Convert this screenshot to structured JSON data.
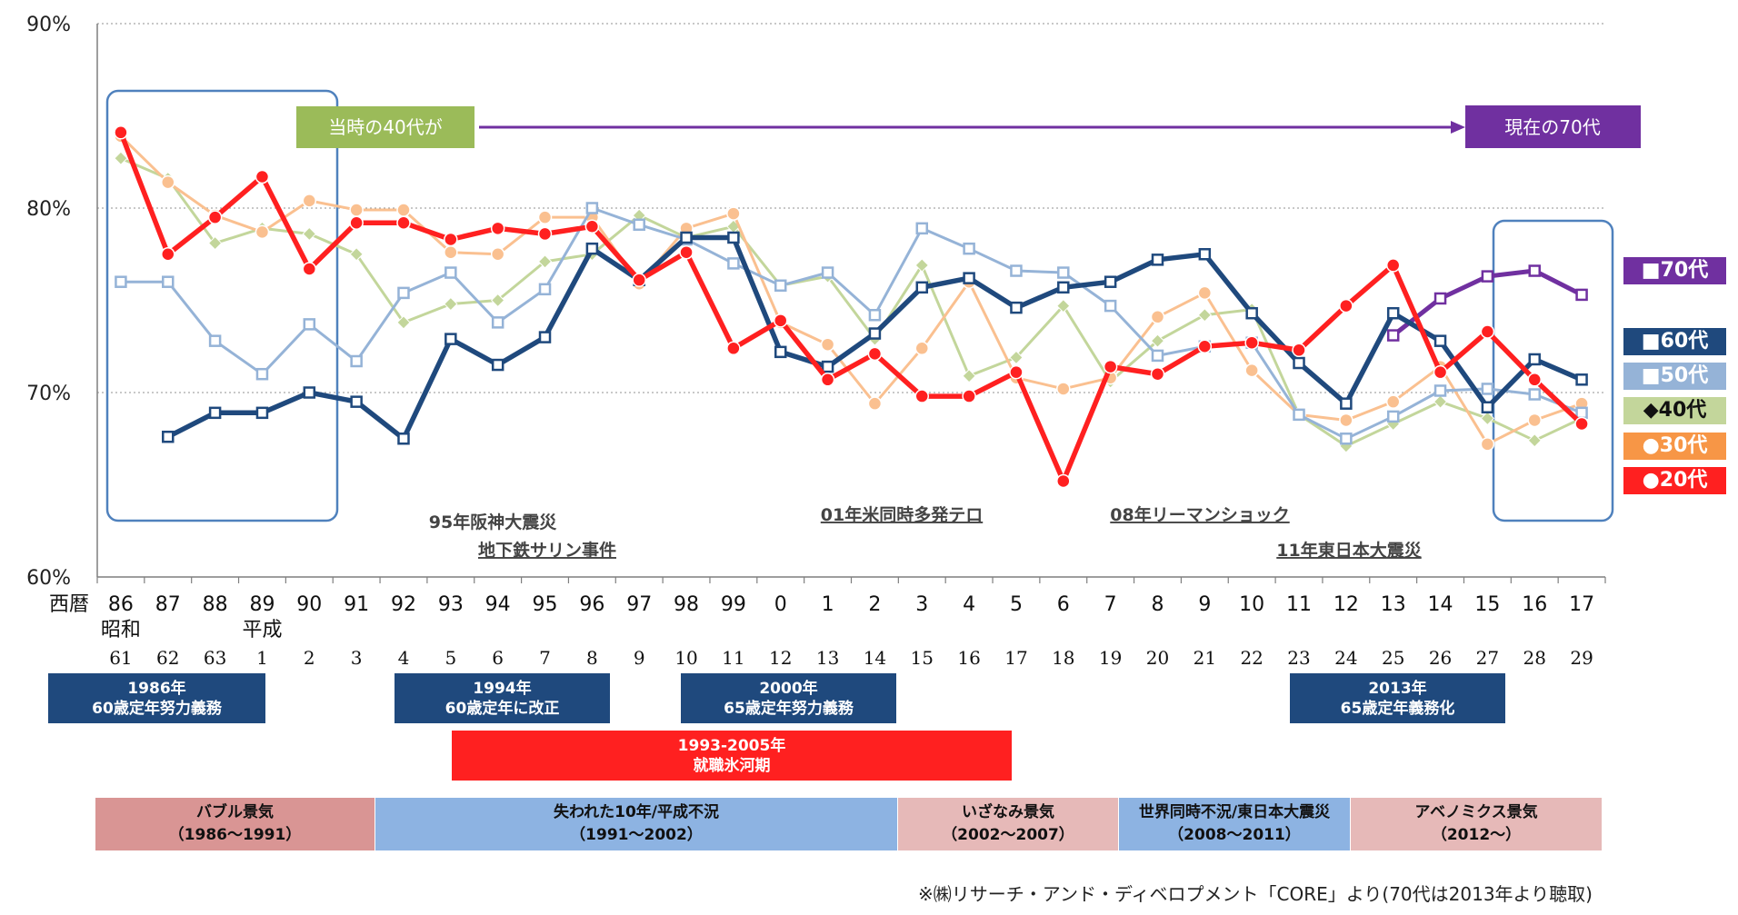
{
  "chart_data": {
    "type": "line",
    "ylim": [
      60,
      90
    ],
    "y_ticks": [
      "60%",
      "70%",
      "80%",
      "90%"
    ],
    "x_prefix": "西暦",
    "x_labels": [
      "86",
      "87",
      "88",
      "89",
      "90",
      "91",
      "92",
      "93",
      "94",
      "95",
      "96",
      "97",
      "98",
      "99",
      "0",
      "1",
      "2",
      "3",
      "4",
      "5",
      "6",
      "7",
      "8",
      "9",
      "10",
      "11",
      "12",
      "13",
      "14",
      "15",
      "16",
      "17"
    ],
    "era_name_labels": [
      {
        "index": 0,
        "text": "昭和"
      },
      {
        "index": 3,
        "text": "平成"
      }
    ],
    "era_year_labels": [
      "61",
      "62",
      "63",
      "1",
      "2",
      "3",
      "4",
      "5",
      "6",
      "7",
      "8",
      "9",
      "10",
      "11",
      "12",
      "13",
      "14",
      "15",
      "16",
      "17",
      "18",
      "19",
      "20",
      "21",
      "22",
      "23",
      "24",
      "25",
      "26",
      "27",
      "28",
      "29"
    ],
    "series": [
      {
        "name": "70代",
        "marker": "■",
        "color": "#7030A0",
        "values": [
          null,
          null,
          null,
          null,
          null,
          null,
          null,
          null,
          null,
          null,
          null,
          null,
          null,
          null,
          null,
          null,
          null,
          null,
          null,
          null,
          null,
          null,
          null,
          null,
          null,
          null,
          null,
          73.1,
          75.1,
          76.3,
          76.6,
          75.3
        ]
      },
      {
        "name": "60代",
        "marker": "■",
        "color": "#1F497D",
        "values": [
          null,
          67.6,
          68.9,
          68.9,
          70.0,
          69.5,
          67.5,
          72.9,
          71.5,
          73.0,
          77.8,
          76.1,
          78.4,
          78.4,
          72.2,
          71.4,
          73.2,
          75.7,
          76.2,
          74.6,
          75.7,
          76.0,
          77.2,
          77.5,
          74.3,
          71.6,
          69.4,
          74.3,
          72.8,
          69.2,
          71.8,
          70.7
        ]
      },
      {
        "name": "50代",
        "marker": "■",
        "color": "#95B3D7",
        "values": [
          76.0,
          76.0,
          72.8,
          71.0,
          73.7,
          71.7,
          75.4,
          76.5,
          73.8,
          75.6,
          80.0,
          79.1,
          78.3,
          77.0,
          75.8,
          76.5,
          74.2,
          78.9,
          77.8,
          76.6,
          76.5,
          74.7,
          72.0,
          72.5,
          72.7,
          68.8,
          67.5,
          68.7,
          70.1,
          70.2,
          69.9,
          68.9
        ]
      },
      {
        "name": "40代",
        "marker": "◆",
        "color": "#C3D69B",
        "values": [
          82.7,
          81.6,
          78.1,
          78.9,
          78.6,
          77.5,
          73.8,
          74.8,
          75.0,
          77.1,
          77.5,
          79.6,
          78.4,
          79.0,
          75.8,
          76.3,
          72.9,
          76.9,
          70.9,
          71.9,
          74.7,
          70.6,
          72.8,
          74.2,
          74.5,
          68.8,
          67.1,
          68.3,
          69.5,
          68.6,
          67.4,
          68.6
        ]
      },
      {
        "name": "30代",
        "marker": "●",
        "color": "#FAC090",
        "values": [
          83.9,
          81.4,
          79.6,
          78.7,
          80.4,
          79.9,
          79.9,
          77.6,
          77.5,
          79.5,
          79.5,
          75.9,
          78.9,
          79.7,
          73.8,
          72.6,
          69.4,
          72.4,
          76.0,
          70.8,
          70.2,
          70.8,
          74.1,
          75.4,
          71.2,
          68.8,
          68.5,
          69.5,
          71.4,
          67.2,
          68.5,
          69.4
        ]
      },
      {
        "name": "20代",
        "marker": "●",
        "color": "#FF2020",
        "values": [
          84.1,
          77.5,
          79.5,
          81.7,
          76.7,
          79.2,
          79.2,
          78.3,
          78.9,
          78.6,
          79.0,
          76.1,
          77.6,
          72.4,
          73.9,
          70.7,
          72.1,
          69.8,
          69.8,
          71.1,
          65.2,
          71.4,
          71.0,
          72.5,
          72.7,
          72.3,
          74.7,
          76.9,
          71.1,
          73.3,
          70.7,
          68.3
        ]
      }
    ]
  },
  "annotations": {
    "then_40s": "当時の40代が",
    "now_70s": "現在の70代",
    "events": [
      "95年阪神大震災",
      "地下鉄サリン事件",
      "01年米同時多発テロ",
      "08年リーマンショック",
      "11年東日本大震災"
    ]
  },
  "policy_boxes": [
    {
      "line1": "1986年",
      "line2": "60歳定年努力義務"
    },
    {
      "line1": "1994年",
      "line2": "60歳定年に改正"
    },
    {
      "line1": "2000年",
      "line2": "65歳定年努力義務"
    },
    {
      "line1": "2013年",
      "line2": "65歳定年義務化"
    }
  ],
  "hyogaki": {
    "line1": "1993-2005年",
    "line2": "就職氷河期"
  },
  "eras": [
    {
      "line1": "バブル景気",
      "line2": "（1986～1991）",
      "color": "#D99594"
    },
    {
      "line1": "失われた10年/平成不況",
      "line2": "（1991～2002）",
      "color": "#8DB3E2"
    },
    {
      "line1": "いざなみ景気",
      "line2": "（2002～2007）",
      "color": "#E6B9B8"
    },
    {
      "line1": "世界同時不況/東日本大震災",
      "line2": "（2008～2011）",
      "color": "#8DB3E2"
    },
    {
      "line1": "アベノミクス景気",
      "line2": "（2012～）",
      "color": "#E6B9B8"
    }
  ],
  "source_note": "※㈱リサーチ・アンド・ディベロプメント「CORE」より(70代は2013年より聴取)"
}
